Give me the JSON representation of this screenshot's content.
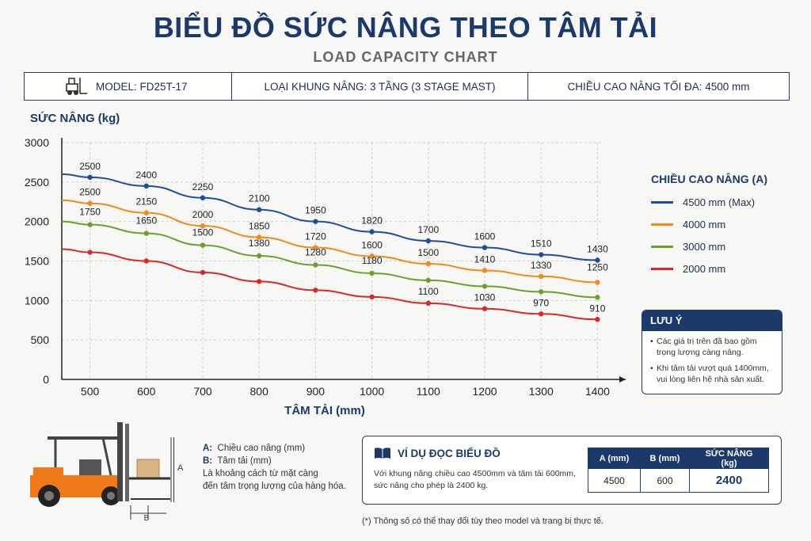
{
  "header": {
    "title": "BIỂU ĐỒ SỨC NÂNG THEO TÂM TẢI",
    "subtitle": "LOAD CAPACITY CHART"
  },
  "info": {
    "model": "MODEL: FD25T-17",
    "mast": "LOẠI KHUNG NÂNG: 3 TẦNG (3 STAGE MAST)",
    "max_height": "CHIỀU CAO NÂNG TỐI ĐA:  4500 mm"
  },
  "chart_data": {
    "type": "line",
    "ylabel": "SỨC NÂNG (kg)",
    "xlabel": "TÂM TẢI (mm)",
    "x": [
      500,
      600,
      700,
      800,
      900,
      1000,
      1100,
      1200,
      1300,
      1400
    ],
    "xlim": [
      450,
      1450
    ],
    "ylim": [
      0,
      3000
    ],
    "yticks": [
      0,
      500,
      1000,
      1500,
      2000,
      2500,
      3000
    ],
    "grid": true,
    "legend_title": "CHIỀU CAO NÂNG (A)",
    "legend_position": "right",
    "series": [
      {
        "name": "4500 mm (Max)",
        "color": "#1f4e9c",
        "start": 2600,
        "values": [
          2500,
          2400,
          2250,
          2100,
          1950,
          1820,
          1700,
          1600,
          1510,
          1430
        ],
        "points": [
          2560,
          2450,
          2300,
          2150,
          2000,
          1870,
          1755,
          1670,
          1580,
          1510
        ]
      },
      {
        "name": "4000 mm",
        "color": "#ef8a1f",
        "start": 2270,
        "values": [
          2500,
          2150,
          2000,
          1850,
          1720,
          1600,
          1500,
          1410,
          1330,
          1250
        ],
        "points": [
          2230,
          2110,
          1945,
          1800,
          1670,
          1560,
          1465,
          1380,
          1305,
          1230
        ]
      },
      {
        "name": "3000 mm",
        "color": "#6f9e2f",
        "start": 2000,
        "values": [
          1750,
          1650,
          1500,
          1380,
          1280,
          1180,
          1100,
          1030,
          970,
          910
        ],
        "points": [
          1960,
          1850,
          1700,
          1565,
          1450,
          1345,
          1255,
          1180,
          1110,
          1040
        ]
      },
      {
        "name": "2000 mm",
        "color": "#d42a2a",
        "start": 1650,
        "values": [
          null,
          null,
          null,
          null,
          null,
          null,
          null,
          null,
          null,
          null
        ],
        "points": [
          1610,
          1500,
          1355,
          1240,
          1130,
          1045,
          965,
          895,
          830,
          760
        ]
      }
    ]
  },
  "note": {
    "title": "LƯU Ý",
    "items": [
      "Các giá trị trên đã bao gồm trọng lượng càng nâng.",
      "Khi tâm tải vượt quá 1400mm, vui lòng liên hệ nhà sản xuất."
    ]
  },
  "dimensions": {
    "a_label": "A:",
    "a_text": "Chiều cao nâng (mm)",
    "b_label": "B:",
    "b_text": "Tâm tải (mm)",
    "desc_1": "Là khoảng cách từ mặt càng",
    "desc_2": "đến tâm trọng lượng của hàng hóa.",
    "marker_a": "A",
    "marker_b": "B"
  },
  "example": {
    "title": "VÍ DỤ ĐỌC BIỂU ĐỒ",
    "text": "Với khung nâng chiều cao 4500mm và tâm tải 600mm, sức nâng cho phép là 2400 kg.",
    "headers": [
      "A (mm)",
      "B (mm)",
      "SỨC NÂNG (kg)"
    ],
    "row": [
      "4500",
      "600",
      "2400"
    ]
  },
  "footnote": "(*) Thông số có thể thay đổi tùy theo model và trang bị thực tế.",
  "colors": {
    "navy": "#1b3a6b",
    "orange": "#ef8a1f",
    "green": "#6f9e2f",
    "red": "#d42a2a",
    "blue": "#1f4e9c"
  }
}
